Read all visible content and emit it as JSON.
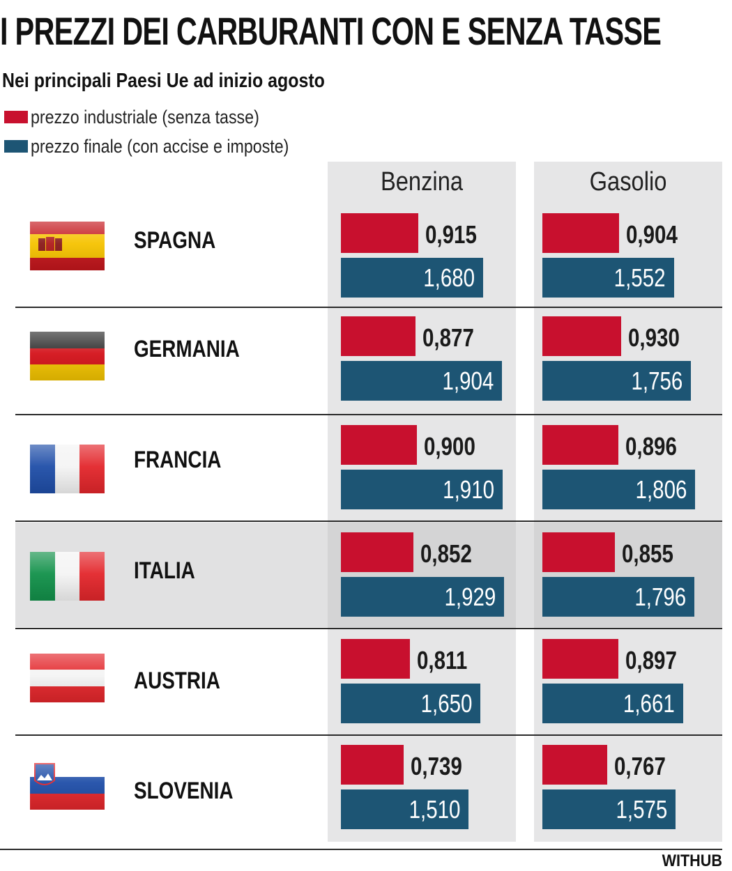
{
  "title": "I PREZZI DEI CARBURANTI CON E SENZA TASSE",
  "subtitle": "Nei principali Paesi Ue ad inizio agosto",
  "legend": [
    {
      "label": "prezzo industriale (senza tasse)",
      "color": "#c8102e"
    },
    {
      "label": "prezzo finale (con accise e imposte)",
      "color": "#1d5574"
    }
  ],
  "credit": "WITHUB",
  "chart_data": {
    "type": "bar",
    "orientation": "horizontal",
    "panels": [
      "Benzina",
      "Gasolio"
    ],
    "categories": [
      "SPAGNA",
      "GERMANIA",
      "FRANCIA",
      "ITALIA",
      "AUSTRIA",
      "SLOVENIA"
    ],
    "highlight": "ITALIA",
    "series": [
      {
        "name": "prezzo industriale (senza tasse)",
        "color": "#c8102e",
        "benzina": [
          "0,915",
          "0,877",
          "0,900",
          "0,852",
          "0,811",
          "0,739"
        ],
        "gasolio": [
          "0,904",
          "0,930",
          "0,896",
          "0,855",
          "0,897",
          "0,767"
        ]
      },
      {
        "name": "prezzo finale (con accise e imposte)",
        "color": "#1d5574",
        "benzina": [
          "1,680",
          "1,904",
          "1,910",
          "1,929",
          "1,650",
          "1,510"
        ],
        "gasolio": [
          "1,552",
          "1,756",
          "1,806",
          "1,796",
          "1,661",
          "1,575"
        ]
      }
    ]
  },
  "flags": [
    {
      "country": "SPAGNA",
      "icon": "spain-flag-icon"
    },
    {
      "country": "GERMANIA",
      "icon": "germany-flag-icon"
    },
    {
      "country": "FRANCIA",
      "icon": "france-flag-icon"
    },
    {
      "country": "ITALIA",
      "icon": "italy-flag-icon"
    },
    {
      "country": "AUSTRIA",
      "icon": "austria-flag-icon"
    },
    {
      "country": "SLOVENIA",
      "icon": "slovenia-flag-icon"
    }
  ]
}
